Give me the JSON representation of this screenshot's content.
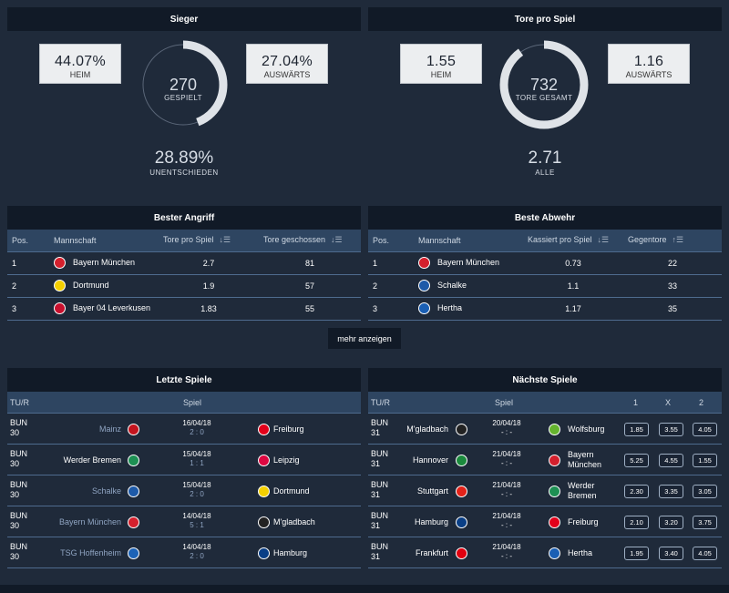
{
  "sieger": {
    "title": "Sieger",
    "heim_pct": "44.07%",
    "heim_label": "HEIM",
    "auswaerts_pct": "27.04%",
    "auswaerts_label": "AUSWÄRTS",
    "gespielt": "270",
    "gespielt_label": "GESPIELT",
    "unentschieden_pct": "28.89%",
    "unentschieden_label": "UNENTSCHIEDEN",
    "ring_fill": 0.4407
  },
  "tore": {
    "title": "Tore pro Spiel",
    "heim": "1.55",
    "heim_label": "HEIM",
    "auswaerts": "1.16",
    "auswaerts_label": "AUSWÄRTS",
    "gesamt": "732",
    "gesamt_label": "TORE GESAMT",
    "alle": "2.71",
    "alle_label": "ALLE",
    "ring_fill": 0.9
  },
  "angriff": {
    "title": "Bester Angriff",
    "cols": [
      "Pos.",
      "Mannschaft",
      "Tore pro Spiel",
      "Tore geschossen"
    ],
    "rows": [
      {
        "pos": "1",
        "team": "Bayern München",
        "tps": "2.7",
        "tore": "81",
        "color": "#d4202d"
      },
      {
        "pos": "2",
        "team": "Dortmund",
        "tps": "1.9",
        "tore": "57",
        "color": "#f5d000"
      },
      {
        "pos": "3",
        "team": "Bayer 04 Leverkusen",
        "tps": "1.83",
        "tore": "55",
        "color": "#c8102e"
      }
    ]
  },
  "abwehr": {
    "title": "Beste Abwehr",
    "cols": [
      "Pos.",
      "Mannschaft",
      "Kassiert pro Spiel",
      "Gegentore"
    ],
    "rows": [
      {
        "pos": "1",
        "team": "Bayern München",
        "kps": "0.73",
        "gegen": "22",
        "color": "#d4202d"
      },
      {
        "pos": "2",
        "team": "Schalke",
        "kps": "1.1",
        "gegen": "33",
        "color": "#1e5aa8"
      },
      {
        "pos": "3",
        "team": "Hertha",
        "kps": "1.17",
        "gegen": "35",
        "color": "#1a5fb4"
      }
    ]
  },
  "more_label": "mehr anzeigen",
  "letzte": {
    "title": "Letzte Spiele",
    "col_tur": "TU/R",
    "col_spiel": "Spiel",
    "matches": [
      {
        "comp": "BUN",
        "round": "30",
        "home": "Mainz",
        "home_dim": true,
        "date": "16/04/18",
        "score": "2 : 0",
        "away": "Freiburg",
        "hc": "#c3141e",
        "ac": "#e2001a"
      },
      {
        "comp": "BUN",
        "round": "30",
        "home": "Werder Bremen",
        "home_dim": false,
        "date": "15/04/18",
        "score": "1 : 1",
        "away": "Leipzig",
        "hc": "#1d9053",
        "ac": "#dd0741"
      },
      {
        "comp": "BUN",
        "round": "30",
        "home": "Schalke",
        "home_dim": true,
        "date": "15/04/18",
        "score": "2 : 0",
        "away": "Dortmund",
        "hc": "#1e5aa8",
        "ac": "#f5d000"
      },
      {
        "comp": "BUN",
        "round": "30",
        "home": "Bayern München",
        "home_dim": true,
        "date": "14/04/18",
        "score": "5 : 1",
        "away": "M'gladbach",
        "hc": "#d4202d",
        "ac": "#222222"
      },
      {
        "comp": "BUN",
        "round": "30",
        "home": "TSG Hoffenheim",
        "home_dim": true,
        "date": "14/04/18",
        "score": "2 : 0",
        "away": "Hamburg",
        "hc": "#1c63b7",
        "ac": "#0a3f86"
      }
    ]
  },
  "naechste": {
    "title": "Nächste Spiele",
    "col_tur": "TU/R",
    "col_spiel": "Spiel",
    "col_1": "1",
    "col_x": "X",
    "col_2": "2",
    "matches": [
      {
        "comp": "BUN",
        "round": "31",
        "home": "M'gladbach",
        "date": "20/04/18",
        "score": "- : -",
        "away": "Wolfsburg",
        "o1": "1.85",
        "ox": "3.55",
        "o2": "4.05",
        "hc": "#222222",
        "ac": "#65b32e"
      },
      {
        "comp": "BUN",
        "round": "31",
        "home": "Hannover",
        "date": "21/04/18",
        "score": "- : -",
        "away": "Bayern München",
        "o1": "5.25",
        "ox": "4.55",
        "o2": "1.55",
        "hc": "#1b8a3d",
        "ac": "#d4202d"
      },
      {
        "comp": "BUN",
        "round": "31",
        "home": "Stuttgart",
        "date": "21/04/18",
        "score": "- : -",
        "away": "Werder Bremen",
        "o1": "2.30",
        "ox": "3.35",
        "o2": "3.05",
        "hc": "#e32219",
        "ac": "#1d9053"
      },
      {
        "comp": "BUN",
        "round": "31",
        "home": "Hamburg",
        "date": "21/04/18",
        "score": "- : -",
        "away": "Freiburg",
        "o1": "2.10",
        "ox": "3.20",
        "o2": "3.75",
        "hc": "#0a3f86",
        "ac": "#e2001a"
      },
      {
        "comp": "BUN",
        "round": "31",
        "home": "Frankfurt",
        "date": "21/04/18",
        "score": "- : -",
        "away": "Hertha",
        "o1": "1.95",
        "ox": "3.40",
        "o2": "4.05",
        "hc": "#e1000f",
        "ac": "#1a5fb4"
      }
    ]
  }
}
